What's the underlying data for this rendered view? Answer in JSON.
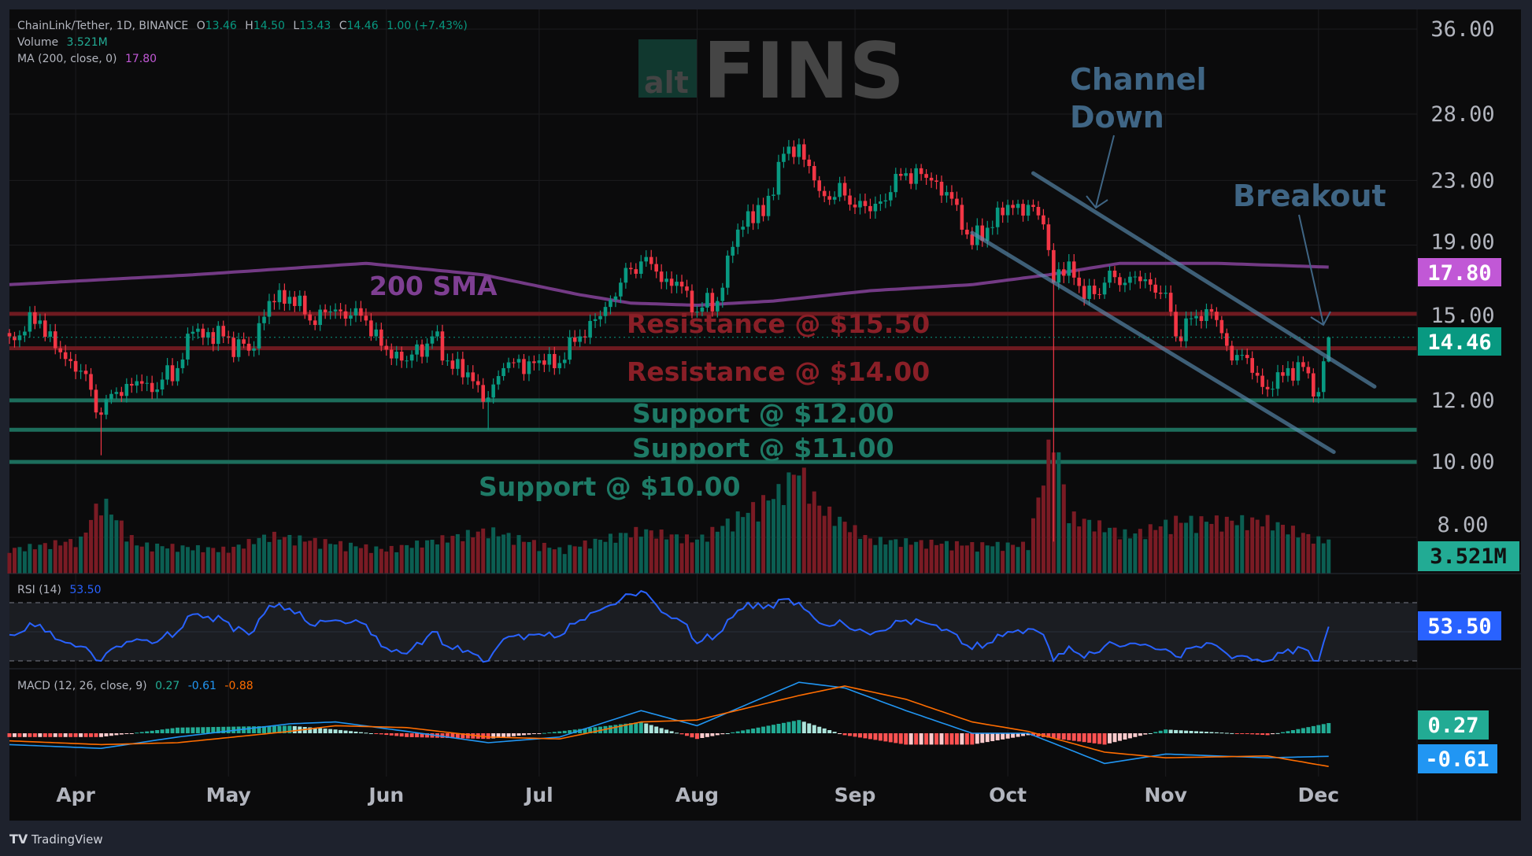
{
  "header": {
    "symbol": "ChainLink/Tether, 1D, BINANCE",
    "o_label": "O",
    "o": "13.46",
    "h_label": "H",
    "h": "14.50",
    "l_label": "L",
    "l": "13.43",
    "c_label": "C",
    "c": "14.46",
    "change": "1.00 (+7.43%)",
    "volume_label": "Volume",
    "volume": "3.521M",
    "ma_label": "MA (200, close, 0)",
    "ma": "17.80"
  },
  "logo": {
    "part1": "alt",
    "part2": "FINS"
  },
  "footer": {
    "brand": "TradingView"
  },
  "colors": {
    "up": "#089981",
    "down": "#f23645",
    "sma": "#7e3f92",
    "resistance": "#6e1a20",
    "support": "#1d6e5c",
    "channel": "#5a8db0",
    "rsi": "#2962ff",
    "macd": "#2196f3",
    "signal": "#ff6d00"
  },
  "chart_data": {
    "type": "candlestick",
    "price_scale": "log",
    "ylim": [
      8,
      36
    ],
    "y_ticks": [
      "36.00",
      "28.00",
      "23.00",
      "19.00",
      "15.00",
      "12.00",
      "10.00",
      "8.00"
    ],
    "x_ticks": [
      "Apr",
      "May",
      "Jun",
      "Jul",
      "Aug",
      "Sep",
      "Oct",
      "Nov",
      "Dec"
    ],
    "last_candle": {
      "open": 13.46,
      "high": 14.5,
      "low": 13.43,
      "close": 14.46
    },
    "close_anchors": [
      [
        "Mar 19",
        14.5
      ],
      [
        "Mar 25",
        15.2
      ],
      [
        "Mar 28",
        14.0
      ],
      [
        "Apr 2",
        13.1
      ],
      [
        "Apr 6",
        11.5
      ],
      [
        "Apr 9",
        12.3
      ],
      [
        "Apr 13",
        12.7
      ],
      [
        "Apr 16",
        12.3
      ],
      [
        "Apr 21",
        13.2
      ],
      [
        "Apr 24",
        14.7
      ],
      [
        "Apr 30",
        14.5
      ],
      [
        "May 5",
        13.9
      ],
      [
        "May 9",
        16.1
      ],
      [
        "May 13",
        16.3
      ],
      [
        "May 17",
        15.2
      ],
      [
        "May 22",
        15.7
      ],
      [
        "May 28",
        15.2
      ],
      [
        "May 31",
        14.1
      ],
      [
        "Jun 5",
        13.5
      ],
      [
        "Jun 10",
        14.5
      ],
      [
        "Jun 13",
        13.5
      ],
      [
        "Jun 18",
        12.7
      ],
      [
        "Jun 21",
        12.1
      ],
      [
        "Jun 24",
        13.2
      ],
      [
        "Jun 30",
        13.4
      ],
      [
        "Jul 5",
        13.4
      ],
      [
        "Jul 9",
        14.5
      ],
      [
        "Jul 13",
        15.4
      ],
      [
        "Jul 17",
        17.0
      ],
      [
        "Jul 21",
        18.1
      ],
      [
        "Jul 26",
        17.2
      ],
      [
        "Jul 30",
        16.6
      ],
      [
        "Aug 1",
        15.6
      ],
      [
        "Aug 5",
        16.1
      ],
      [
        "Aug 8",
        18.9
      ],
      [
        "Aug 11",
        21.0
      ],
      [
        "Aug 14",
        20.7
      ],
      [
        "Aug 17",
        24.3
      ],
      [
        "Aug 21",
        25.6
      ],
      [
        "Aug 25",
        22.3
      ],
      [
        "Aug 30",
        22.0
      ],
      [
        "Sep 4",
        21.0
      ],
      [
        "Sep 11",
        23.5
      ],
      [
        "Sep 16",
        23.0
      ],
      [
        "Sep 21",
        21.4
      ],
      [
        "Sep 24",
        19.0
      ],
      [
        "Sep 27",
        20.0
      ],
      [
        "Oct 1",
        21.4
      ],
      [
        "Oct 5",
        21.4
      ],
      [
        "Oct 8",
        20.2
      ],
      [
        "Oct 10",
        17.0
      ],
      [
        "Oct 13",
        18.1
      ],
      [
        "Oct 16",
        16.2
      ],
      [
        "Oct 20",
        17.0
      ],
      [
        "Oct 25",
        17.3
      ],
      [
        "Oct 29",
        16.9
      ],
      [
        "Nov 1",
        16.5
      ],
      [
        "Nov 3",
        14.5
      ],
      [
        "Nov 7",
        15.4
      ],
      [
        "Nov 10",
        15.6
      ],
      [
        "Nov 13",
        14.1
      ],
      [
        "Nov 17",
        13.6
      ],
      [
        "Nov 21",
        12.4
      ],
      [
        "Nov 25",
        13.2
      ],
      [
        "Nov 29",
        13.0
      ],
      [
        "Dec 1",
        12.3
      ],
      [
        "Dec 3",
        14.46
      ]
    ],
    "wick_lows": [
      [
        "Apr 6",
        10.2
      ],
      [
        "Oct 10",
        7.9
      ],
      [
        "Jun 21",
        11.0
      ]
    ],
    "sma200": {
      "name": "200 SMA",
      "value": "17.80",
      "points": [
        [
          "Mar 19",
          16.9
        ],
        [
          "Apr 24",
          17.4
        ],
        [
          "May 28",
          18.0
        ],
        [
          "Jun 20",
          17.4
        ],
        [
          "Jul 9",
          16.4
        ],
        [
          "Jul 19",
          16.0
        ],
        [
          "Aug 1",
          15.9
        ],
        [
          "Aug 16",
          16.1
        ],
        [
          "Sep 4",
          16.6
        ],
        [
          "Sep 24",
          16.9
        ],
        [
          "Oct 9",
          17.4
        ],
        [
          "Oct 23",
          18.0
        ],
        [
          "Nov 11",
          18.0
        ],
        [
          "Dec 3",
          17.8
        ]
      ]
    },
    "levels": [
      {
        "label": "Resistance @ $15.50",
        "price": 15.5,
        "kind": "resistance"
      },
      {
        "label": "Resistance @ $14.00",
        "price": 14.0,
        "kind": "resistance"
      },
      {
        "label": "Support @ $12.00",
        "price": 12.0,
        "kind": "support"
      },
      {
        "label": "Support @ $11.00",
        "price": 11.0,
        "kind": "support"
      },
      {
        "label": "Support @ $10.00",
        "price": 10.0,
        "kind": "support"
      }
    ],
    "channel": {
      "upper": [
        [
          "Oct 6",
          23.5
        ],
        [
          "Dec 12",
          12.5
        ]
      ],
      "lower": [
        [
          "Sep 24",
          19.7
        ],
        [
          "Dec 4",
          10.3
        ]
      ]
    },
    "annotations": {
      "channel_line1": "Channel",
      "channel_line2": "Down",
      "breakout": "Breakout"
    },
    "price_tags": {
      "sma": "17.80",
      "last": "14.46",
      "volume": "3.521M"
    },
    "volume_m_anchors": [
      [
        "Mar 19",
        2.5
      ],
      [
        "Apr 2",
        3.5
      ],
      [
        "Apr 6",
        7.8
      ],
      [
        "Apr 13",
        3.0
      ],
      [
        "May 1",
        2.5
      ],
      [
        "May 9",
        4.0
      ],
      [
        "Jun 1",
        2.5
      ],
      [
        "Jun 21",
        4.5
      ],
      [
        "Jul 5",
        2.5
      ],
      [
        "Jul 21",
        4.5
      ],
      [
        "Aug 1",
        3.5
      ],
      [
        "Aug 11",
        6.5
      ],
      [
        "Aug 17",
        8.5
      ],
      [
        "Aug 21",
        11.0
      ],
      [
        "Aug 25",
        7.0
      ],
      [
        "Sep 4",
        3.5
      ],
      [
        "Sep 24",
        3.0
      ],
      [
        "Oct 5",
        3.0
      ],
      [
        "Oct 10",
        15.0
      ],
      [
        "Oct 13",
        6.0
      ],
      [
        "Oct 25",
        4.0
      ],
      [
        "Nov 3",
        5.5
      ],
      [
        "Nov 21",
        5.5
      ],
      [
        "Dec 1",
        3.5
      ],
      [
        "Dec 3",
        3.521
      ]
    ],
    "rsi": {
      "label": "RSI (14)",
      "value": "53.50",
      "upper_band": 70,
      "lower_band": 30,
      "points": [
        [
          "Mar 19",
          48
        ],
        [
          "Mar 25",
          55
        ],
        [
          "Mar 28",
          45
        ],
        [
          "Apr 2",
          40
        ],
        [
          "Apr 6",
          30
        ],
        [
          "Apr 9",
          40
        ],
        [
          "Apr 13",
          45
        ],
        [
          "Apr 16",
          42
        ],
        [
          "Apr 21",
          50
        ],
        [
          "Apr 24",
          62
        ],
        [
          "Apr 30",
          58
        ],
        [
          "May 5",
          48
        ],
        [
          "May 9",
          68
        ],
        [
          "May 13",
          66
        ],
        [
          "May 17",
          55
        ],
        [
          "May 22",
          58
        ],
        [
          "May 28",
          55
        ],
        [
          "May 31",
          40
        ],
        [
          "Jun 5",
          35
        ],
        [
          "Jun 10",
          50
        ],
        [
          "Jun 13",
          40
        ],
        [
          "Jun 18",
          35
        ],
        [
          "Jun 21",
          30
        ],
        [
          "Jun 24",
          45
        ],
        [
          "Jun 30",
          48
        ],
        [
          "Jul 5",
          47
        ],
        [
          "Jul 9",
          58
        ],
        [
          "Jul 13",
          65
        ],
        [
          "Jul 17",
          72
        ],
        [
          "Jul 21",
          78
        ],
        [
          "Jul 26",
          62
        ],
        [
          "Jul 30",
          55
        ],
        [
          "Aug 1",
          42
        ],
        [
          "Aug 5",
          48
        ],
        [
          "Aug 8",
          60
        ],
        [
          "Aug 11",
          70
        ],
        [
          "Aug 14",
          66
        ],
        [
          "Aug 17",
          72
        ],
        [
          "Aug 21",
          70
        ],
        [
          "Aug 25",
          56
        ],
        [
          "Aug 30",
          55
        ],
        [
          "Sep 4",
          48
        ],
        [
          "Sep 11",
          58
        ],
        [
          "Sep 16",
          55
        ],
        [
          "Sep 21",
          48
        ],
        [
          "Sep 24",
          38
        ],
        [
          "Sep 27",
          42
        ],
        [
          "Oct 1",
          50
        ],
        [
          "Oct 5",
          52
        ],
        [
          "Oct 8",
          48
        ],
        [
          "Oct 10",
          30
        ],
        [
          "Oct 13",
          40
        ],
        [
          "Oct 16",
          32
        ],
        [
          "Oct 20",
          40
        ],
        [
          "Oct 25",
          42
        ],
        [
          "Oct 29",
          40
        ],
        [
          "Nov 1",
          38
        ],
        [
          "Nov 3",
          33
        ],
        [
          "Nov 7",
          40
        ],
        [
          "Nov 10",
          42
        ],
        [
          "Nov 13",
          35
        ],
        [
          "Nov 17",
          33
        ],
        [
          "Nov 21",
          30
        ],
        [
          "Nov 25",
          38
        ],
        [
          "Nov 29",
          37
        ],
        [
          "Dec 1",
          30
        ],
        [
          "Dec 3",
          53.5
        ]
      ]
    },
    "macd": {
      "label": "MACD (12, 26, close, 9)",
      "histogram": "0.27",
      "macd": "-0.61",
      "signal": "-0.88",
      "points": [
        [
          "Mar 19",
          -0.3,
          -0.2
        ],
        [
          "Apr 6",
          -0.4,
          -0.3
        ],
        [
          "Apr 21",
          -0.1,
          -0.25
        ],
        [
          "May 13",
          0.25,
          0.05
        ],
        [
          "May 22",
          0.3,
          0.2
        ],
        [
          "Jun 5",
          0.05,
          0.15
        ],
        [
          "Jun 21",
          -0.25,
          -0.1
        ],
        [
          "Jul 5",
          -0.1,
          -0.15
        ],
        [
          "Jul 21",
          0.6,
          0.3
        ],
        [
          "Aug 1",
          0.2,
          0.35
        ],
        [
          "Aug 21",
          1.35,
          1.0
        ],
        [
          "Aug 30",
          1.2,
          1.25
        ],
        [
          "Sep 11",
          0.6,
          0.9
        ],
        [
          "Sep 24",
          0.0,
          0.3
        ],
        [
          "Oct 5",
          0.0,
          0.05
        ],
        [
          "Oct 20",
          -0.8,
          -0.5
        ],
        [
          "Nov 1",
          -0.55,
          -0.65
        ],
        [
          "Nov 21",
          -0.65,
          -0.6
        ],
        [
          "Dec 3",
          -0.61,
          -0.88
        ]
      ]
    }
  }
}
